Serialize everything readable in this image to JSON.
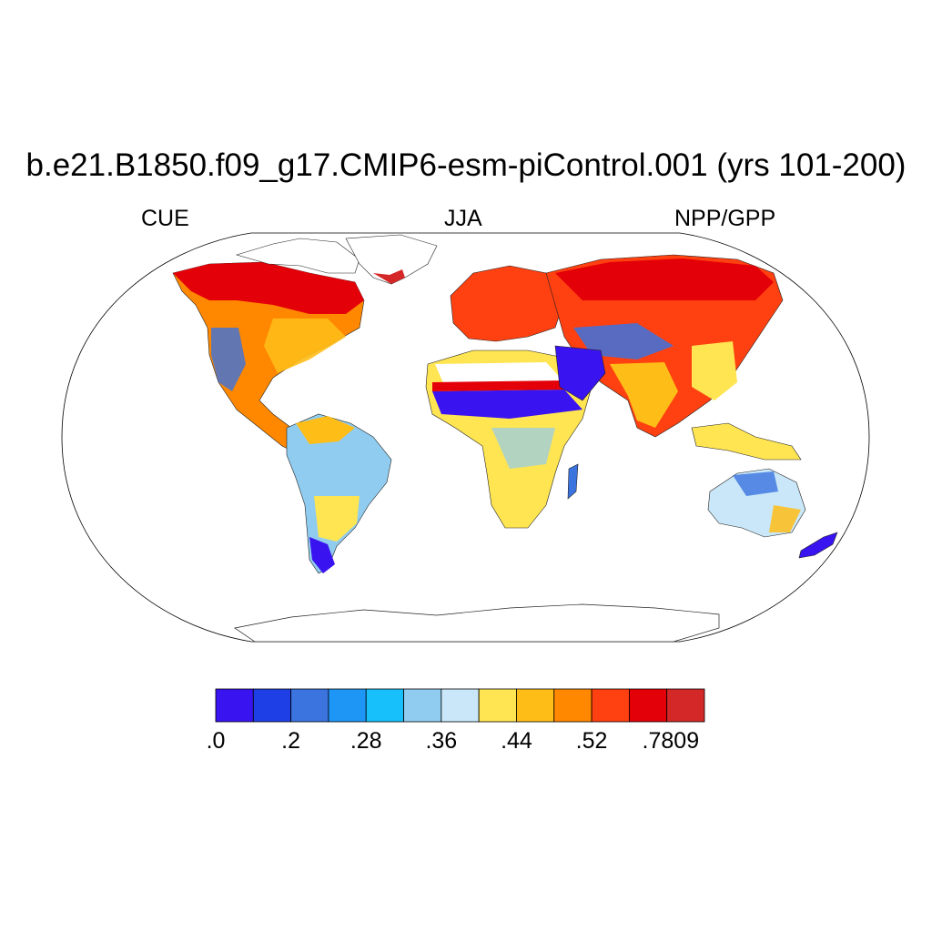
{
  "title": "b.e21.B1850.f09_g17.CMIP6-esm-piControl.001 (yrs 101-200)",
  "left_string": "CUE",
  "center_string": "JJA",
  "right_string": "NPP/GPP",
  "projection": "Robinson",
  "colorbar": {
    "colors": [
      "#3a14f0",
      "#1f3fe6",
      "#3b73df",
      "#1e96f5",
      "#18c0fb",
      "#90ccef",
      "#c9e7f8",
      "#ffe552",
      "#ffbd18",
      "#ff8800",
      "#ff4010",
      "#e40008",
      "#d42828"
    ],
    "labels": [
      ".0",
      ".2",
      ".28",
      ".36",
      ".44",
      ".52",
      ".7809"
    ]
  },
  "map_regions": [
    {
      "region": "north-america-boreal",
      "color": "#e40008"
    },
    {
      "region": "greenland-margin",
      "color": "#d42828"
    },
    {
      "region": "eurasia-boreal",
      "color": "#e40008"
    },
    {
      "region": "sahara-sahel",
      "color": "#3a14f0"
    },
    {
      "region": "tropical-africa",
      "color": "#ffe552"
    },
    {
      "region": "amazon",
      "color": "#90ccef"
    },
    {
      "region": "patagonia",
      "color": "#3a14f0"
    },
    {
      "region": "australia",
      "color": "#c9e7f8"
    },
    {
      "region": "new-zealand",
      "color": "#3a14f0"
    },
    {
      "region": "south-asia",
      "color": "#ffbd18"
    }
  ]
}
